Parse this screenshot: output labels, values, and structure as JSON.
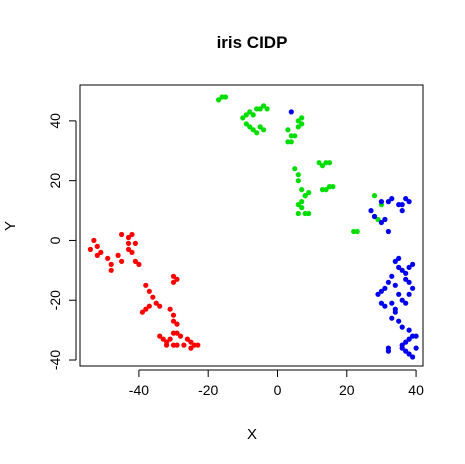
{
  "chart_data": {
    "type": "scatter",
    "title": "iris CIDP",
    "xlabel": "X",
    "ylabel": "Y",
    "xlim": [
      -57,
      42
    ],
    "ylim": [
      -42,
      52
    ],
    "xticks": [
      -40,
      -20,
      0,
      20,
      40
    ],
    "yticks": [
      -40,
      -20,
      0,
      20,
      40
    ],
    "xtick_labels": [
      "-40",
      "-20",
      "0",
      "20",
      "40"
    ],
    "ytick_labels": [
      "-40",
      "-20",
      "0",
      "20",
      "40"
    ],
    "grid": false,
    "legend": false,
    "series": [
      {
        "color": "#ff0000",
        "points": [
          [
            -54,
            -3
          ],
          [
            -53,
            0
          ],
          [
            -52,
            -2
          ],
          [
            -51,
            -4
          ],
          [
            -52,
            -5
          ],
          [
            -49,
            -6
          ],
          [
            -48,
            -8
          ],
          [
            -48,
            -10
          ],
          [
            -46,
            -5
          ],
          [
            -45,
            -7
          ],
          [
            -45,
            2
          ],
          [
            -43,
            1
          ],
          [
            -42,
            2
          ],
          [
            -43,
            -1
          ],
          [
            -42,
            -4
          ],
          [
            -43,
            -3
          ],
          [
            -41,
            -1
          ],
          [
            -41,
            -7
          ],
          [
            -40,
            -8
          ],
          [
            -38,
            -15
          ],
          [
            -37,
            -17
          ],
          [
            -36,
            -19
          ],
          [
            -35,
            -21
          ],
          [
            -34,
            -22
          ],
          [
            -37,
            -22
          ],
          [
            -38,
            -23
          ],
          [
            -39,
            -24
          ],
          [
            -30,
            -12
          ],
          [
            -29,
            -13
          ],
          [
            -30,
            -14
          ],
          [
            -31,
            -23
          ],
          [
            -30,
            -25
          ],
          [
            -30,
            -27
          ],
          [
            -29,
            -28
          ],
          [
            -34,
            -32
          ],
          [
            -33,
            -33
          ],
          [
            -32,
            -34
          ],
          [
            -31,
            -33
          ],
          [
            -30,
            -31
          ],
          [
            -29,
            -31
          ],
          [
            -28,
            -32
          ],
          [
            -26,
            -33
          ],
          [
            -25,
            -34
          ],
          [
            -24,
            -35
          ],
          [
            -23,
            -35
          ],
          [
            -25,
            -36
          ],
          [
            -27,
            -35
          ],
          [
            -29,
            -35
          ],
          [
            -30,
            -35
          ],
          [
            -32,
            -35
          ]
        ]
      },
      {
        "color": "#00dd00",
        "points": [
          [
            -17,
            47
          ],
          [
            -16,
            48
          ],
          [
            -15,
            48
          ],
          [
            -10,
            41
          ],
          [
            -9,
            42
          ],
          [
            -8,
            43
          ],
          [
            -7,
            42
          ],
          [
            -9,
            39
          ],
          [
            -8,
            38
          ],
          [
            -7,
            37
          ],
          [
            -6,
            36
          ],
          [
            -5,
            38
          ],
          [
            -4,
            37
          ],
          [
            -6,
            44
          ],
          [
            -5,
            44
          ],
          [
            -4,
            45
          ],
          [
            -3,
            44
          ],
          [
            3,
            37
          ],
          [
            4,
            35
          ],
          [
            5,
            35
          ],
          [
            3,
            33
          ],
          [
            4,
            33
          ],
          [
            6,
            40
          ],
          [
            7,
            41
          ],
          [
            7,
            39
          ],
          [
            6,
            38
          ],
          [
            5,
            24
          ],
          [
            6,
            22
          ],
          [
            6,
            20
          ],
          [
            7,
            17
          ],
          [
            8,
            15
          ],
          [
            9,
            16
          ],
          [
            8,
            15
          ],
          [
            7,
            13
          ],
          [
            6,
            12
          ],
          [
            7,
            11
          ],
          [
            6,
            9
          ],
          [
            8,
            9
          ],
          [
            9,
            9
          ],
          [
            12,
            26
          ],
          [
            13,
            25
          ],
          [
            14,
            26
          ],
          [
            15,
            26
          ],
          [
            13,
            17
          ],
          [
            14,
            17
          ],
          [
            15,
            18
          ],
          [
            16,
            18
          ],
          [
            22,
            3
          ],
          [
            23,
            3
          ],
          [
            28,
            8
          ],
          [
            29,
            7
          ],
          [
            31,
            7
          ],
          [
            28,
            15
          ],
          [
            30,
            12
          ]
        ]
      },
      {
        "color": "#0000ee",
        "points": [
          [
            4,
            43
          ],
          [
            27,
            10
          ],
          [
            28,
            8
          ],
          [
            30,
            6
          ],
          [
            31,
            7
          ],
          [
            32,
            3
          ],
          [
            30,
            13
          ],
          [
            32,
            13
          ],
          [
            33,
            14
          ],
          [
            35,
            12
          ],
          [
            36,
            12
          ],
          [
            37,
            14
          ],
          [
            38,
            13
          ],
          [
            36,
            10
          ],
          [
            34,
            -7
          ],
          [
            35,
            -6
          ],
          [
            35,
            -9
          ],
          [
            36,
            -10
          ],
          [
            37,
            -11
          ],
          [
            38,
            -9
          ],
          [
            39,
            -8
          ],
          [
            37,
            -13
          ],
          [
            33,
            -12
          ],
          [
            32,
            -14
          ],
          [
            34,
            -15
          ],
          [
            31,
            -16
          ],
          [
            30,
            -17
          ],
          [
            29,
            -18
          ],
          [
            30,
            -21
          ],
          [
            31,
            -22
          ],
          [
            33,
            -21
          ],
          [
            34,
            -23
          ],
          [
            35,
            -18
          ],
          [
            36,
            -20
          ],
          [
            37,
            -21
          ],
          [
            38,
            -18
          ],
          [
            39,
            -16
          ],
          [
            38,
            -14
          ],
          [
            33,
            -26
          ],
          [
            34,
            -24
          ],
          [
            35,
            -27
          ],
          [
            36,
            -29
          ],
          [
            38,
            -30
          ],
          [
            39,
            -32
          ],
          [
            40,
            -32
          ],
          [
            38,
            -33
          ],
          [
            37,
            -34
          ],
          [
            36,
            -35
          ],
          [
            36,
            -36
          ],
          [
            37,
            -37
          ],
          [
            38,
            -38
          ],
          [
            39,
            -39
          ],
          [
            40,
            -36
          ],
          [
            32,
            -36
          ],
          [
            32,
            -37
          ]
        ]
      }
    ]
  }
}
